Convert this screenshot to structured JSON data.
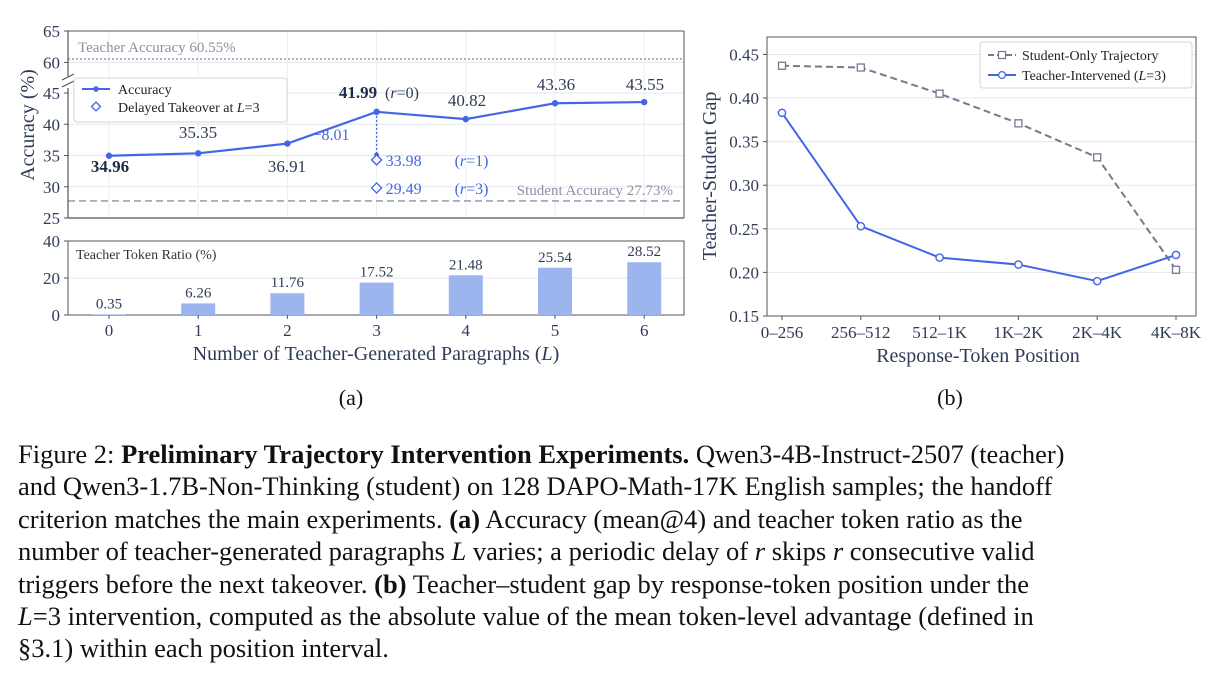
{
  "figure": {
    "panel_a_label": "(a)",
    "panel_b_label": "(b)"
  },
  "chart_data": [
    {
      "id": "a-top",
      "type": "line",
      "x": [
        0,
        1,
        2,
        3,
        4,
        5,
        6
      ],
      "series": [
        {
          "name": "Accuracy",
          "values": [
            34.96,
            35.35,
            36.91,
            41.99,
            40.82,
            43.36,
            43.55
          ],
          "labels": [
            "34.96",
            "35.35",
            "36.91",
            "41.99",
            "40.82",
            "43.36",
            "43.55"
          ]
        },
        {
          "name": "Delayed Takeover at L=3",
          "points": [
            {
              "x": 3,
              "y": 33.98,
              "label": "33.98",
              "note": "(r=1)"
            },
            {
              "x": 3,
              "y": 29.49,
              "label": "29.49",
              "note": "(r=3)"
            }
          ]
        }
      ],
      "annotations": {
        "r0": "(r=0)",
        "drop": "−8.01"
      },
      "reference_lines": [
        {
          "label": "Teacher Accuracy",
          "value_text": "60.55%",
          "y": 60.55
        },
        {
          "label": "Student Accuracy",
          "value_text": "27.73%",
          "y": 27.73
        }
      ],
      "ylabel": "Accuracy (%)",
      "yticks": [
        "25",
        "30",
        "35",
        "40",
        "45",
        "60",
        "65"
      ],
      "ylim_lower": [
        25,
        45
      ],
      "ylim_upper": [
        58,
        65
      ],
      "legend_position": "upper-left",
      "grid": true
    },
    {
      "id": "a-bottom",
      "type": "bar",
      "categories": [
        "0",
        "1",
        "2",
        "3",
        "4",
        "5",
        "6"
      ],
      "values": [
        0.35,
        6.26,
        11.76,
        17.52,
        21.48,
        25.54,
        28.52
      ],
      "labels": [
        "0.35",
        "6.26",
        "11.76",
        "17.52",
        "21.48",
        "25.54",
        "28.52"
      ],
      "panel_text": "Teacher Token Ratio (%)",
      "xlabel": "Number of Teacher-Generated Paragraphs (L)",
      "yticks": [
        "0",
        "20",
        "40"
      ],
      "ylim": [
        0,
        40
      ],
      "color": "#9db5ef"
    },
    {
      "id": "b",
      "type": "line",
      "categories": [
        "0–256",
        "256–512",
        "512–1K",
        "1K–2K",
        "2K–4K",
        "4K–8K"
      ],
      "series": [
        {
          "name": "Student-Only Trajectory",
          "values": [
            0.437,
            0.435,
            0.405,
            0.371,
            0.332,
            0.203
          ],
          "color": "#737b8c"
        },
        {
          "name": "Teacher-Intervened (L=3)",
          "values": [
            0.383,
            0.253,
            0.217,
            0.209,
            0.19,
            0.22
          ],
          "color": "#4466e6"
        }
      ],
      "xlabel": "Response-Token Position",
      "ylabel": "Teacher-Student Gap",
      "yticks": [
        "0.15",
        "0.20",
        "0.25",
        "0.30",
        "0.35",
        "0.40",
        "0.45"
      ],
      "ylim": [
        0.15,
        0.47
      ],
      "legend_position": "top-right",
      "grid": true
    }
  ],
  "caption": {
    "figure_label": "Figure 2:",
    "title": "Preliminary Trajectory Intervention Experiments.",
    "l1": "Qwen3-4B-Instruct-2507 (teacher)",
    "l2": "and Qwen3-1.7B-Non-Thinking (student) on 128 DAPO-Math-17K English samples; the handoff",
    "l3a": "criterion matches the main experiments.",
    "l3b": "(a)",
    "l3c": "Accuracy (mean@4) and teacher token ratio as the",
    "l4a": "number of teacher-generated paragraphs",
    "l4b": "L",
    "l4c": "varies; a periodic delay of",
    "l4d": "r",
    "l4e": "skips",
    "l4f": "r",
    "l4g": "consecutive valid",
    "l5a": "triggers before the next takeover.",
    "l5b": "(b)",
    "l5c": "Teacher–student gap by response-token position under the",
    "l6a": "L",
    "l6b": "=3 intervention, computed as the absolute value of the mean token-level advantage (defined in",
    "l7": "§3.1) within each position interval."
  }
}
